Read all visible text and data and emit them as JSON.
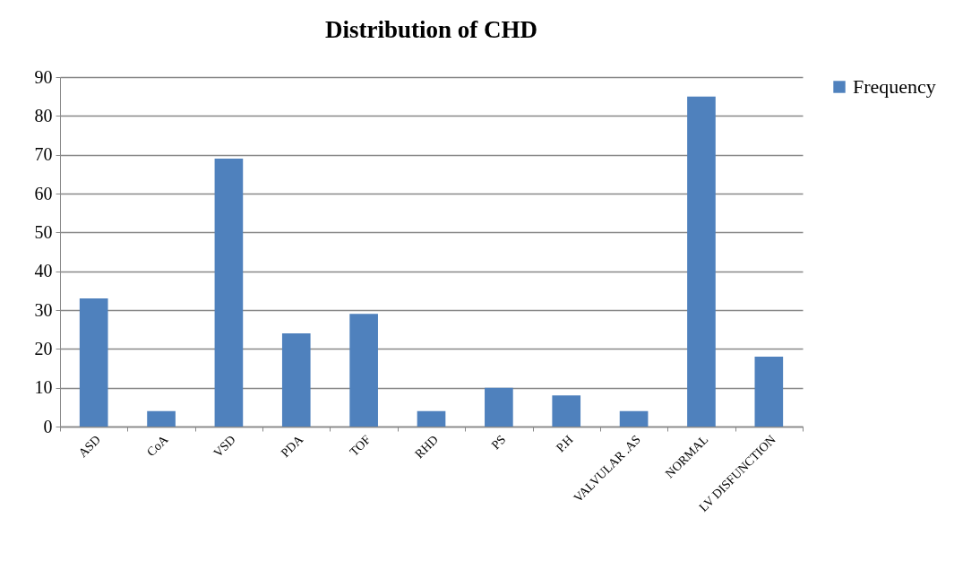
{
  "chart_data": {
    "type": "bar",
    "title": "Distribution of CHD",
    "categories": [
      "ASD",
      "CoA",
      "VSD",
      "PDA",
      "TOF",
      "RHD",
      "PS",
      "P.H",
      "VALVULAR .AS",
      "NORMAL",
      "LV DISFUNCTION"
    ],
    "series": [
      {
        "name": "Frequency",
        "color": "#4f81bd",
        "values": [
          33,
          4,
          69,
          24,
          29,
          4,
          10,
          8,
          4,
          85,
          18
        ]
      }
    ],
    "ylim": [
      0,
      90
    ],
    "yticks": [
      0,
      10,
      20,
      30,
      40,
      50,
      60,
      70,
      80,
      90
    ],
    "grid": "y",
    "legend": "right"
  }
}
